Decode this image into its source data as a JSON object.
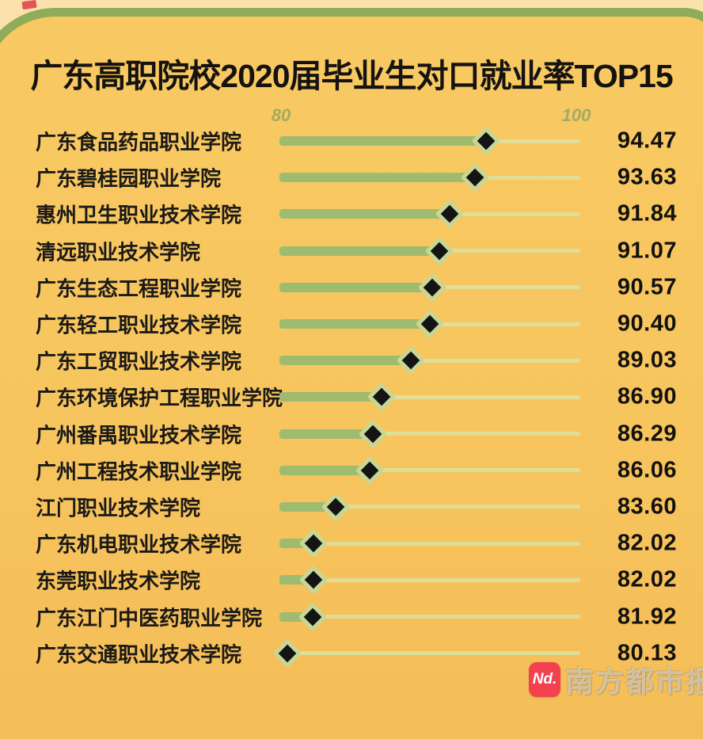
{
  "chart_data": {
    "type": "bar",
    "orientation": "horizontal",
    "title": "广东高职院校2020届毕业生对口就业率TOP15",
    "categories": [
      "广东食品药品职业学院",
      "广东碧桂园职业学院",
      "惠州卫生职业技术学院",
      "清远职业技术学院",
      "广东生态工程职业学院",
      "广东轻工职业技术学院",
      "广东工贸职业技术学院",
      "广东环境保护工程职业学院",
      "广州番禺职业技术学院",
      "广州工程技术职业学院",
      "江门职业技术学院",
      "广东机电职业技术学院",
      "东莞职业技术学院",
      "广东江门中医药职业学院",
      "广东交通职业技术学院"
    ],
    "values": [
      94.47,
      93.63,
      91.84,
      91.07,
      90.57,
      90.4,
      89.03,
      86.9,
      86.29,
      86.06,
      83.6,
      82.02,
      82.02,
      81.92,
      80.13
    ],
    "xlabel": "",
    "ylabel": "",
    "xlim": [
      80,
      100
    ],
    "x_ticks": [
      "80",
      "100"
    ],
    "grid": false,
    "legend": false,
    "marker": "diamond",
    "value_labels_shown": true
  },
  "chart": {
    "title": "广东高职院校2020届毕业生对口就业率TOP15",
    "axis": {
      "tick_low": "80",
      "tick_high": "100"
    }
  },
  "rows": [
    {
      "label": "广东食品药品职业学院",
      "value": "94.47"
    },
    {
      "label": "广东碧桂园职业学院",
      "value": "93.63"
    },
    {
      "label": "惠州卫生职业技术学院",
      "value": "91.84"
    },
    {
      "label": "清远职业技术学院",
      "value": "91.07"
    },
    {
      "label": "广东生态工程职业学院",
      "value": "90.57"
    },
    {
      "label": "广东轻工职业技术学院",
      "value": "90.40"
    },
    {
      "label": "广东工贸职业技术学院",
      "value": "89.03"
    },
    {
      "label": "广东环境保护工程职业学院",
      "value": "86.90"
    },
    {
      "label": "广州番禺职业技术学院",
      "value": "86.29"
    },
    {
      "label": "广州工程技术职业学院",
      "value": "86.06"
    },
    {
      "label": "江门职业技术学院",
      "value": "83.60"
    },
    {
      "label": "广东机电职业技术学院",
      "value": "82.02"
    },
    {
      "label": "东莞职业技术学院",
      "value": "82.02"
    },
    {
      "label": "广东江门中医药职业学院",
      "value": "81.92"
    },
    {
      "label": "广东交通职业技术学院",
      "value": "80.13"
    }
  ],
  "watermark": {
    "badge_text": "Nd.",
    "brand_name": "南方都市报"
  },
  "colors": {
    "page_background": "#FBE2AC",
    "card_background": "#F7C55E",
    "card_border_green": "#8FAC59",
    "bar_fill": "#9EBB6F",
    "track_line": "#DEE09F",
    "diamond_fill": "#141414",
    "diamond_outline": "#C8D795",
    "axis_tick_color": "#A2AB62",
    "text_color": "#1C1A17",
    "brand_red": "#F2414F"
  }
}
